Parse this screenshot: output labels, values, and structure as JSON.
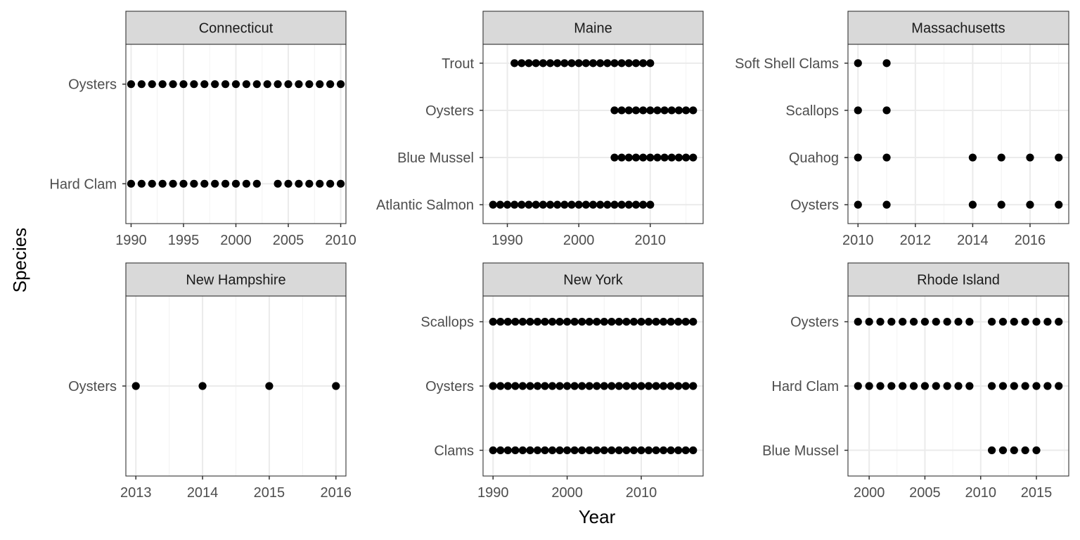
{
  "chart_data": {
    "type": "scatter",
    "facet_layout": "2 rows x 3 columns, free scales",
    "xlabel": "Year",
    "ylabel": "Species",
    "grid": true,
    "panels": [
      {
        "title": "Connecticut",
        "xlim": [
          1989.5,
          2010.5
        ],
        "xticks": [
          1990,
          1995,
          2000,
          2005,
          2010
        ],
        "categories": [
          "Hard Clam",
          "Oysters"
        ],
        "series": [
          {
            "category": "Oysters",
            "x": [
              1990,
              1991,
              1992,
              1993,
              1994,
              1995,
              1996,
              1997,
              1998,
              1999,
              2000,
              2001,
              2002,
              2003,
              2004,
              2005,
              2006,
              2007,
              2008,
              2009,
              2010
            ]
          },
          {
            "category": "Hard Clam",
            "x": [
              1990,
              1991,
              1992,
              1993,
              1994,
              1995,
              1996,
              1997,
              1998,
              1999,
              2000,
              2001,
              2002,
              2004,
              2005,
              2006,
              2007,
              2008,
              2009,
              2010
            ]
          }
        ]
      },
      {
        "title": "Maine",
        "xlim": [
          1986.6,
          2017.4
        ],
        "xticks": [
          1990,
          2000,
          2010
        ],
        "categories": [
          "Atlantic Salmon",
          "Blue Mussel",
          "Oysters",
          "Trout"
        ],
        "series": [
          {
            "category": "Trout",
            "x": [
              1991,
              1992,
              1993,
              1994,
              1995,
              1996,
              1997,
              1998,
              1999,
              2000,
              2001,
              2002,
              2003,
              2004,
              2005,
              2006,
              2007,
              2008,
              2009,
              2010
            ]
          },
          {
            "category": "Oysters",
            "x": [
              2005,
              2006,
              2007,
              2008,
              2009,
              2010,
              2011,
              2012,
              2013,
              2014,
              2015,
              2016
            ]
          },
          {
            "category": "Blue Mussel",
            "x": [
              2005,
              2006,
              2007,
              2008,
              2009,
              2010,
              2011,
              2012,
              2013,
              2014,
              2015,
              2016
            ]
          },
          {
            "category": "Atlantic Salmon",
            "x": [
              1988,
              1989,
              1990,
              1991,
              1992,
              1993,
              1994,
              1995,
              1996,
              1997,
              1998,
              1999,
              2000,
              2001,
              2002,
              2003,
              2004,
              2005,
              2006,
              2007,
              2008,
              2009,
              2010
            ]
          }
        ]
      },
      {
        "title": "Massachusetts",
        "xlim": [
          2009.65,
          2017.35
        ],
        "xticks": [
          2010,
          2012,
          2014,
          2016
        ],
        "categories": [
          "Oysters",
          "Quahog",
          "Scallops",
          "Soft Shell Clams"
        ],
        "series": [
          {
            "category": "Soft Shell Clams",
            "x": [
              2010,
              2011
            ]
          },
          {
            "category": "Scallops",
            "x": [
              2010,
              2011
            ]
          },
          {
            "category": "Quahog",
            "x": [
              2010,
              2011,
              2014,
              2015,
              2016,
              2017
            ]
          },
          {
            "category": "Oysters",
            "x": [
              2010,
              2011,
              2014,
              2015,
              2016,
              2017
            ]
          }
        ]
      },
      {
        "title": "New Hampshire",
        "xlim": [
          2012.85,
          2016.15
        ],
        "xticks": [
          2013,
          2014,
          2015,
          2016
        ],
        "categories": [
          "Oysters"
        ],
        "series": [
          {
            "category": "Oysters",
            "x": [
              2013,
              2014,
              2015,
              2016
            ]
          }
        ]
      },
      {
        "title": "New York",
        "xlim": [
          1988.65,
          2018.35
        ],
        "xticks": [
          1990,
          2000,
          2010
        ],
        "categories": [
          "Clams",
          "Oysters",
          "Scallops"
        ],
        "series": [
          {
            "category": "Scallops",
            "x": [
              1990,
              1991,
              1992,
              1993,
              1994,
              1995,
              1996,
              1997,
              1998,
              1999,
              2000,
              2001,
              2002,
              2003,
              2004,
              2005,
              2006,
              2007,
              2008,
              2009,
              2010,
              2011,
              2012,
              2013,
              2014,
              2015,
              2016,
              2017
            ]
          },
          {
            "category": "Oysters",
            "x": [
              1990,
              1991,
              1992,
              1993,
              1994,
              1995,
              1996,
              1997,
              1998,
              1999,
              2000,
              2001,
              2002,
              2003,
              2004,
              2005,
              2006,
              2007,
              2008,
              2009,
              2010,
              2011,
              2012,
              2013,
              2014,
              2015,
              2016,
              2017
            ]
          },
          {
            "category": "Clams",
            "x": [
              1990,
              1991,
              1992,
              1993,
              1994,
              1995,
              1996,
              1997,
              1998,
              1999,
              2000,
              2001,
              2002,
              2003,
              2004,
              2005,
              2006,
              2007,
              2008,
              2009,
              2010,
              2011,
              2012,
              2013,
              2014,
              2015,
              2016,
              2017
            ]
          }
        ]
      },
      {
        "title": "Rhode Island",
        "xlim": [
          1998.1,
          2017.9
        ],
        "xticks": [
          2000,
          2005,
          2010,
          2015
        ],
        "categories": [
          "Blue Mussel",
          "Hard Clam",
          "Oysters"
        ],
        "series": [
          {
            "category": "Oysters",
            "x": [
              1999,
              2000,
              2001,
              2002,
              2003,
              2004,
              2005,
              2006,
              2007,
              2008,
              2009,
              2011,
              2012,
              2013,
              2014,
              2015,
              2016,
              2017
            ]
          },
          {
            "category": "Hard Clam",
            "x": [
              1999,
              2000,
              2001,
              2002,
              2003,
              2004,
              2005,
              2006,
              2007,
              2008,
              2009,
              2011,
              2012,
              2013,
              2014,
              2015,
              2016,
              2017
            ]
          },
          {
            "category": "Blue Mussel",
            "x": [
              2011,
              2012,
              2013,
              2014,
              2015
            ]
          }
        ]
      }
    ]
  }
}
